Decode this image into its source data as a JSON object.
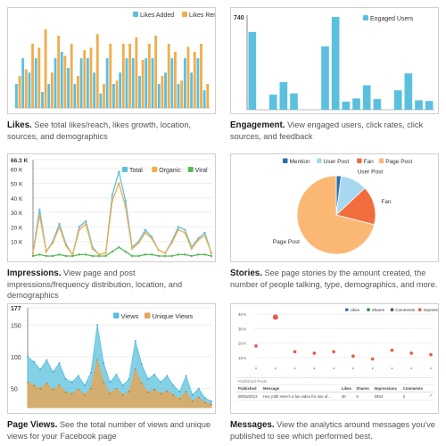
{
  "panels": {
    "likes": {
      "title": "Likes.",
      "desc": "See total likes/reach, likes growth, location, sources, and demographics"
    },
    "engagement": {
      "title": "Engagement.",
      "desc": "View engaged users, click rates, click sources, and feedback"
    },
    "impressions": {
      "title": "Impressions.",
      "desc": "View page and post impressions/frequency distribution, location, and demographics"
    },
    "stories": {
      "title": "Stories.",
      "desc": "See page stories by the amount created, the number of people talking, type, demographics, and more."
    },
    "pageviews": {
      "title": "Page Views.",
      "desc": "See the total number of views and unique views for your Facebook page"
    },
    "messages": {
      "title": "Messages.",
      "desc": "View the analytics around messages you've published to see which performed best.",
      "table": {
        "section": "Published Posts",
        "headers": [
          "Published",
          "Message",
          "Likes",
          "Shares",
          "Impressions",
          "Comments",
          ""
        ],
        "row": [
          "09/25/2013",
          "Hey y'all! Here's a fun video for one of...",
          "30",
          "0",
          "3353",
          "2",
          "↗"
        ]
      }
    }
  },
  "chart_data": [
    {
      "type": "bar",
      "series": [
        {
          "name": "Likes Added",
          "color": "#5bc0de",
          "values": [
            30,
            62,
            44,
            62,
            20,
            30,
            62,
            70,
            50,
            30,
            62,
            62,
            44,
            18,
            62,
            30,
            44,
            62,
            62,
            40,
            62,
            62,
            30,
            44,
            62,
            30,
            62,
            44,
            62,
            22
          ]
        },
        {
          "name": "Likes Removed",
          "color": "#f0ad4e",
          "values": [
            40,
            48,
            80,
            75,
            98,
            44,
            90,
            65,
            80,
            40,
            72,
            75,
            92,
            30,
            80,
            34,
            80,
            80,
            88,
            60,
            80,
            90,
            40,
            80,
            70,
            34,
            76,
            70,
            80,
            30
          ]
        }
      ],
      "legend": "top-right"
    },
    {
      "type": "bar",
      "series": [
        {
          "name": "Engaged Users",
          "color": "#5bc0de",
          "values": [
            620,
            0,
            120,
            220,
            130,
            0,
            0,
            505,
            740,
            65,
            90,
            195,
            85,
            0,
            155,
            290,
            75,
            70
          ]
        }
      ],
      "ytick": "740",
      "legend": "top-right"
    },
    {
      "type": "line",
      "ytick_labels": [
        "66.3 K",
        "60 K",
        "50 K",
        "40 K",
        "30 K",
        "20 K",
        "10 K"
      ],
      "series": [
        {
          "name": "Total",
          "color": "#5bc0de",
          "values": [
            2,
            32,
            3,
            10,
            22,
            8,
            1,
            20,
            24,
            6,
            1,
            2,
            42,
            58,
            38,
            6,
            10,
            18,
            13,
            4,
            2,
            10,
            20,
            18,
            6,
            12,
            16,
            2
          ]
        },
        {
          "name": "Organic",
          "color": "#f0ad4e",
          "values": [
            2,
            28,
            3,
            9,
            20,
            7,
            1,
            18,
            22,
            5,
            1,
            2,
            38,
            50,
            34,
            5,
            9,
            16,
            12,
            4,
            2,
            9,
            18,
            16,
            5,
            11,
            14,
            2
          ]
        },
        {
          "name": "Viral",
          "color": "#5cb85c",
          "values": [
            0,
            1,
            0,
            0,
            1,
            0,
            0,
            1,
            1,
            0,
            0,
            0,
            3,
            6,
            3,
            0,
            0,
            1,
            1,
            0,
            0,
            0,
            1,
            1,
            0,
            1,
            1,
            0
          ]
        }
      ],
      "legend": "top-right"
    },
    {
      "type": "pie",
      "slices": [
        {
          "name": "Mention",
          "value": 2,
          "color": "#2b6cb0"
        },
        {
          "name": "User Post",
          "value": 11,
          "color": "#a8d8f0"
        },
        {
          "name": "Fan",
          "value": 16,
          "color": "#f26d3d"
        },
        {
          "name": "Page Post",
          "value": 71,
          "color": "#fbb875"
        }
      ],
      "legend": "top"
    },
    {
      "type": "area",
      "ytick_labels": [
        "177",
        "150",
        "100",
        "50"
      ],
      "ylim": [
        20,
        177
      ],
      "series": [
        {
          "name": "Views",
          "color": "#5bc0de",
          "values": [
            100,
            92,
            80,
            95,
            76,
            90,
            65,
            60,
            70,
            55,
            75,
            150,
            90,
            60,
            72,
            55,
            65,
            125,
            88,
            65,
            72,
            60,
            70,
            55,
            45,
            70,
            40,
            50,
            35,
            30
          ]
        },
        {
          "name": "Unique Views",
          "color": "#e0a85a",
          "values": [
            60,
            55,
            50,
            58,
            48,
            55,
            44,
            42,
            48,
            40,
            50,
            95,
            60,
            42,
            50,
            40,
            45,
            80,
            58,
            44,
            48,
            42,
            46,
            40,
            34,
            45,
            30,
            36,
            28,
            25
          ]
        }
      ],
      "legend": "top-right"
    },
    {
      "type": "scatter",
      "ytick_labels": [
        "40 K",
        "30 K",
        "20 K",
        "10 K"
      ],
      "legend_items": [
        {
          "name": "Likes",
          "color": "#3b73c9"
        },
        {
          "name": "Shares",
          "color": "#2a8a3a"
        },
        {
          "name": "Comments",
          "color": "#555555"
        },
        {
          "name": "Impressions",
          "color": "#e35b4a"
        }
      ],
      "points": [
        {
          "x": 0,
          "y": 18
        },
        {
          "x": 1,
          "y": 38
        },
        {
          "x": 2,
          "y": 14
        },
        {
          "x": 3,
          "y": 13
        },
        {
          "x": 4,
          "y": 14
        },
        {
          "x": 5,
          "y": 11
        },
        {
          "x": 6,
          "y": 9
        },
        {
          "x": 7,
          "y": 15
        },
        {
          "x": 8,
          "y": 13
        },
        {
          "x": 9,
          "y": 12
        }
      ]
    }
  ]
}
